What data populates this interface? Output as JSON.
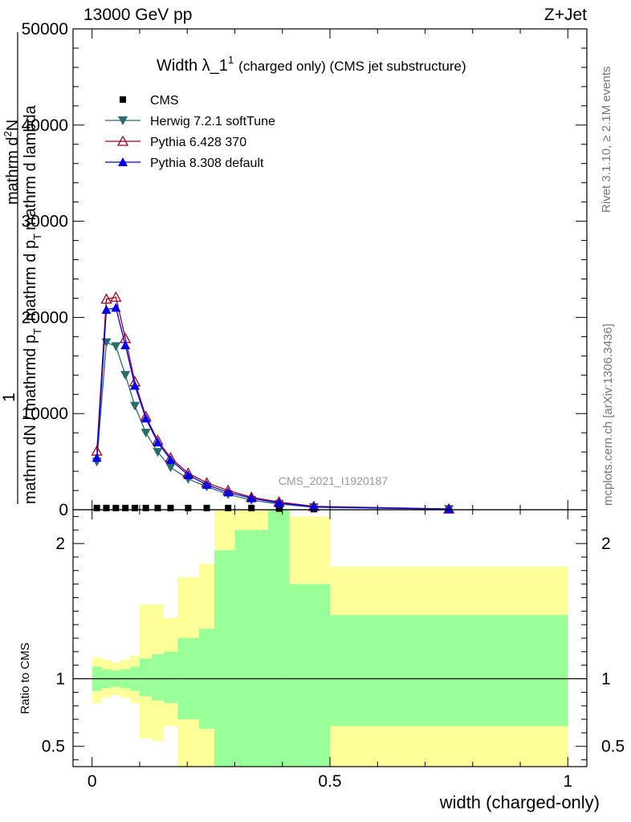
{
  "header": {
    "left": "13000 GeV pp",
    "right": "Z+Jet"
  },
  "side": {
    "rivet": "Rivet 3.1.10, ≥ 2.1M events",
    "mcplots": "mcplots.cern.ch [arXiv:1306.3436]"
  },
  "watermark": "CMS_2021_I1920187",
  "colors": {
    "cms": "#000000",
    "herwig": "#2a6b6b",
    "pythia6": "#a00020",
    "pythia8": "#0000ee",
    "band_inner": "#99ff99",
    "band_outer": "#ffff99"
  },
  "chart_data": [
    {
      "type": "line",
      "panel": "main",
      "title": "Width λ_1",
      "title_sup": "1",
      "title_suffix": "(charged only) (CMS jet substructure)",
      "xlabel": "width (charged-only)",
      "ylabel_top": "1",
      "ylabel_mid": "mathrm dN / mathrmd p",
      "ylabel_line2": "mathrm d",
      "ylabel_line2_sup": "2",
      "ylabel_line2_rest": "N",
      "ylabel_line3": "mathrm d p",
      "ylabel_line3_rest": "mathrm d lambda",
      "ylabel_sub": "T",
      "xlim": [
        -0.04,
        1.04
      ],
      "ylim": [
        0,
        50000
      ],
      "yticks": [
        "0",
        "10000",
        "20000",
        "30000",
        "40000",
        "50000"
      ],
      "legend_position": "top-left",
      "x": [
        0.01,
        0.03,
        0.05,
        0.07,
        0.09,
        0.113,
        0.138,
        0.165,
        0.202,
        0.241,
        0.286,
        0.335,
        0.393,
        0.466,
        0.75
      ],
      "series": [
        {
          "name": "CMS",
          "marker": "square",
          "values": [
            180,
            180,
            180,
            180,
            180,
            180,
            180,
            180,
            180,
            180,
            180,
            180,
            120,
            60,
            20
          ]
        },
        {
          "name": "Herwig 7.2.1 softTune",
          "marker": "triangle-down",
          "values": [
            5000,
            17400,
            17000,
            14000,
            10800,
            8000,
            6000,
            4400,
            3200,
            2400,
            1600,
            1000,
            600,
            250,
            60
          ]
        },
        {
          "name": "Pythia 6.428 370",
          "marker": "triangle-up-open",
          "values": [
            6100,
            21900,
            22100,
            17800,
            13300,
            9700,
            7200,
            5400,
            3800,
            2800,
            2000,
            1300,
            800,
            350,
            80
          ]
        },
        {
          "name": "Pythia 8.308 default",
          "marker": "triangle-up",
          "values": [
            5400,
            20800,
            21000,
            17100,
            12900,
            9500,
            7000,
            5200,
            3600,
            2600,
            1800,
            1200,
            700,
            300,
            70
          ]
        }
      ]
    },
    {
      "type": "area",
      "panel": "ratio",
      "ylabel": "Ratio to CMS",
      "xlabel": "width (charged-only)",
      "ylim": [
        0.35,
        2.25
      ],
      "yticks": [
        "0.5",
        "1",
        "2"
      ],
      "xticks": [
        "0",
        "0.5",
        "1"
      ],
      "bins": [
        0,
        0.02,
        0.04,
        0.06,
        0.08,
        0.1,
        0.125,
        0.15,
        0.18,
        0.225,
        0.257,
        0.3,
        0.37,
        0.415,
        0.5,
        1.0
      ],
      "inner_low": [
        0.91,
        0.93,
        0.94,
        0.93,
        0.91,
        0.87,
        0.84,
        0.82,
        0.7,
        0.63,
        0.3,
        0.3,
        0.3,
        0.3,
        0.65
      ],
      "inner_high": [
        1.09,
        1.07,
        1.06,
        1.07,
        1.09,
        1.15,
        1.18,
        1.2,
        1.3,
        1.37,
        1.95,
        2.1,
        2.25,
        1.7,
        1.47
      ],
      "outer_low": [
        0.82,
        0.86,
        0.88,
        0.86,
        0.82,
        0.56,
        0.54,
        0.65,
        0.3,
        0.3,
        0.3,
        0.3,
        0.3,
        0.3,
        0.3
      ],
      "outer_high": [
        1.16,
        1.14,
        1.12,
        1.14,
        1.17,
        1.55,
        1.55,
        1.45,
        1.75,
        1.85,
        2.25,
        2.25,
        2.25,
        2.2,
        1.83
      ]
    }
  ]
}
